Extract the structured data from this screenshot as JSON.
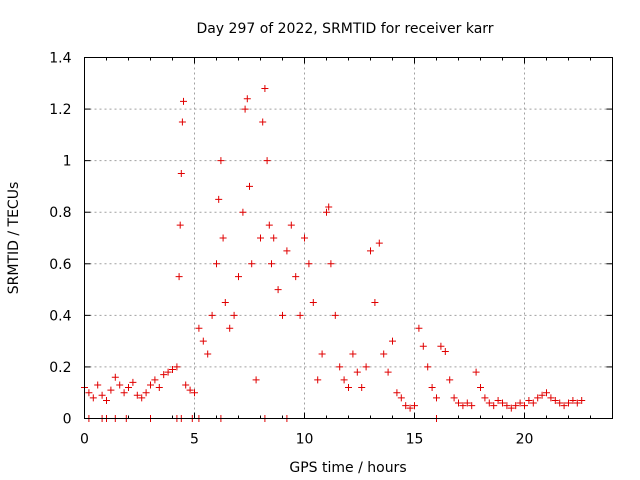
{
  "chart_data": {
    "type": "scatter",
    "title": "Day 297 of 2022, SRMTID for receiver karr",
    "xlabel": "GPS time / hours",
    "ylabel": "SRMTID / TECUs",
    "xlim": [
      0,
      24
    ],
    "ylim": [
      0,
      1.4
    ],
    "xticks": [
      0,
      5,
      10,
      15,
      20
    ],
    "xtick_labels": [
      "0",
      "5",
      "10",
      "15",
      "20"
    ],
    "yticks": [
      0,
      0.2,
      0.4,
      0.6,
      0.8,
      1,
      1.2,
      1.4
    ],
    "ytick_labels": [
      "0",
      "0.2",
      "0.4",
      "0.6",
      "0.8",
      "1",
      "1.2",
      "1.4"
    ],
    "grid": true,
    "marker": "+",
    "color": "#e00000",
    "series": [
      {
        "name": "SRMTID",
        "segments": [
          {
            "x": [
              0.0,
              0.2,
              0.4,
              0.6,
              0.8,
              1.0,
              1.2,
              1.4,
              1.6,
              1.8,
              2.0,
              2.2,
              2.4,
              2.6,
              2.8,
              3.0,
              3.2,
              3.4,
              3.6,
              3.8,
              4.0,
              4.2
            ],
            "y": [
              0.12,
              0.1,
              0.08,
              0.13,
              0.09,
              0.07,
              0.11,
              0.16,
              0.13,
              0.1,
              0.12,
              0.14,
              0.09,
              0.08,
              0.1,
              0.13,
              0.15,
              0.12,
              0.17,
              0.18,
              0.19,
              0.2
            ]
          },
          {
            "x": [
              4.3,
              4.35,
              4.4,
              4.45,
              4.5
            ],
            "y": [
              0.55,
              0.75,
              0.95,
              1.15,
              1.23
            ]
          },
          {
            "x": [
              4.6,
              4.8,
              5.0,
              5.2,
              5.4,
              5.6,
              5.8,
              6.0,
              6.1,
              6.2,
              6.3,
              6.4,
              6.6,
              6.8,
              7.0,
              7.2,
              7.3,
              7.4,
              7.5,
              7.6,
              7.8,
              8.0,
              8.1,
              8.2,
              8.3,
              8.4,
              8.5,
              8.6,
              8.8,
              9.0,
              9.2,
              9.4,
              9.6,
              9.8,
              10.0,
              10.2,
              10.4,
              10.6,
              10.8,
              11.0,
              11.1,
              11.2,
              11.4,
              11.6,
              11.8,
              12.0,
              12.2,
              12.4,
              12.6,
              12.8,
              13.0,
              13.2,
              13.4,
              13.6,
              13.8,
              14.0,
              14.2,
              14.4,
              14.6,
              14.8,
              15.0,
              15.2,
              15.4,
              15.6,
              15.8,
              16.0,
              16.2,
              16.4,
              16.6,
              16.8,
              17.0,
              17.2,
              17.4,
              17.6,
              17.8,
              18.0,
              18.2,
              18.4,
              18.6,
              18.8,
              19.0,
              19.2,
              19.4,
              19.6,
              19.8,
              20.0,
              20.2,
              20.4,
              20.6,
              20.8,
              21.0,
              21.2,
              21.4,
              21.6,
              21.8,
              22.0,
              22.2,
              22.4,
              22.6
            ],
            "y": [
              0.13,
              0.11,
              0.1,
              0.35,
              0.3,
              0.25,
              0.4,
              0.6,
              0.85,
              1.0,
              0.7,
              0.45,
              0.35,
              0.4,
              0.55,
              0.8,
              1.2,
              1.24,
              0.9,
              0.6,
              0.15,
              0.7,
              1.15,
              1.28,
              1.0,
              0.75,
              0.6,
              0.7,
              0.5,
              0.4,
              0.65,
              0.75,
              0.55,
              0.4,
              0.7,
              0.6,
              0.45,
              0.15,
              0.25,
              0.8,
              0.82,
              0.6,
              0.4,
              0.2,
              0.15,
              0.12,
              0.25,
              0.18,
              0.12,
              0.2,
              0.65,
              0.45,
              0.68,
              0.25,
              0.18,
              0.3,
              0.1,
              0.08,
              0.05,
              0.04,
              0.05,
              0.35,
              0.28,
              0.2,
              0.12,
              0.08,
              0.28,
              0.26,
              0.15,
              0.08,
              0.06,
              0.05,
              0.06,
              0.05,
              0.18,
              0.12,
              0.08,
              0.06,
              0.05,
              0.07,
              0.06,
              0.05,
              0.04,
              0.05,
              0.06,
              0.05,
              0.07,
              0.06,
              0.08,
              0.09,
              0.1,
              0.08,
              0.07,
              0.06,
              0.05,
              0.06,
              0.07,
              0.06,
              0.07
            ]
          },
          {
            "x": [
              0.2,
              0.8,
              1.0,
              1.4,
              1.9,
              3.0,
              4.2,
              4.4,
              4.9,
              5.2,
              6.2,
              8.2,
              9.2,
              16.0
            ],
            "y": [
              0,
              0,
              0,
              0,
              0,
              0,
              0,
              0,
              0,
              0,
              0,
              0,
              0,
              0
            ]
          }
        ]
      }
    ]
  }
}
